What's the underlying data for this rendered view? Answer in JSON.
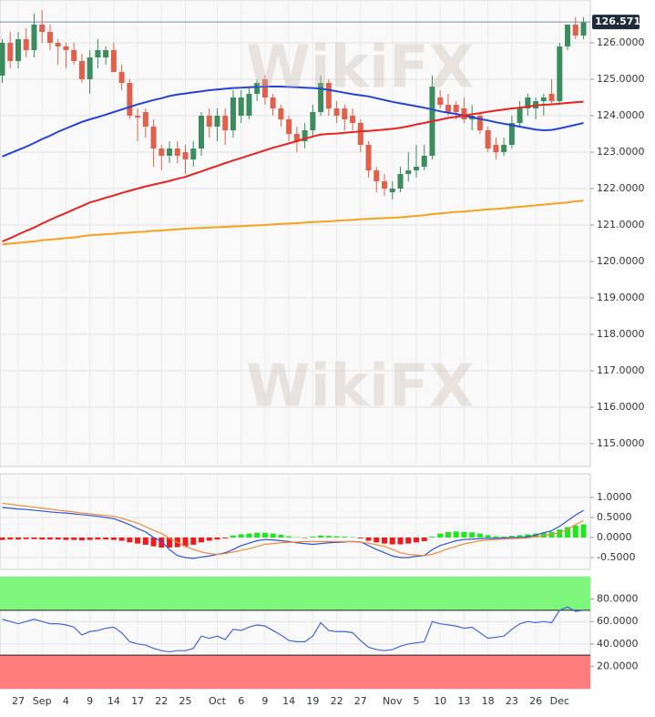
{
  "chart_data": [
    {
      "type": "candlestick",
      "watermark": "WikiFX",
      "categories": [
        null,
        null,
        "27",
        null,
        null,
        "Sep",
        null,
        null,
        "4",
        null,
        null,
        "9",
        null,
        null,
        "14",
        null,
        null,
        "17",
        null,
        null,
        "22",
        null,
        null,
        "25",
        null,
        null,
        null,
        "Oct",
        null,
        null,
        "6",
        null,
        null,
        "9",
        null,
        null,
        "14",
        null,
        null,
        "19",
        null,
        null,
        "22",
        null,
        null,
        "27",
        null,
        null,
        null,
        "Nov",
        null,
        null,
        "5",
        null,
        null,
        "10",
        null,
        null,
        "13",
        null,
        null,
        "18",
        null,
        null,
        "23",
        null,
        null,
        "26",
        null,
        null,
        "Dec",
        null,
        null,
        null
      ],
      "open": [
        125.1,
        126.0,
        125.5,
        126.1,
        125.8,
        126.5,
        126.3,
        126.0,
        125.9,
        125.8,
        125.5,
        125.0,
        125.6,
        125.6,
        125.8,
        125.2,
        124.9,
        124.0,
        124.1,
        123.7,
        123.1,
        122.9,
        123.1,
        123.0,
        122.8,
        123.1,
        124.0,
        123.7,
        124.0,
        123.6,
        124.0,
        124.0,
        124.6,
        125.0,
        124.5,
        124.2,
        123.9,
        123.5,
        123.3,
        123.6,
        124.1,
        124.9,
        124.2,
        124.2,
        124.0,
        123.8,
        123.2,
        122.5,
        122.2,
        121.9,
        122.0,
        122.4,
        122.5,
        122.6,
        122.9,
        124.5,
        124.3,
        124.3,
        124.2,
        123.9,
        124.0,
        123.6,
        123.2,
        123.0,
        123.2,
        123.8,
        124.2,
        124.2,
        124.4,
        124.6,
        124.4,
        125.9,
        126.5,
        126.2
      ],
      "high": [
        126.1,
        126.3,
        126.3,
        126.4,
        126.8,
        126.9,
        126.5,
        126.1,
        126.0,
        126.0,
        125.7,
        125.8,
        126.1,
        125.9,
        126.0,
        125.4,
        125.0,
        124.2,
        124.2,
        123.9,
        123.2,
        123.3,
        123.3,
        123.2,
        123.3,
        124.1,
        124.2,
        124.2,
        124.2,
        124.7,
        124.7,
        124.8,
        125.0,
        125.1,
        124.6,
        124.3,
        124.0,
        123.7,
        123.8,
        124.3,
        125.1,
        125.0,
        124.4,
        124.3,
        124.2,
        123.9,
        123.3,
        122.6,
        122.4,
        122.2,
        122.6,
        123.0,
        123.2,
        123.2,
        125.1,
        124.7,
        124.6,
        124.4,
        124.5,
        124.3,
        124.1,
        123.7,
        123.4,
        123.4,
        124.0,
        124.4,
        124.6,
        124.5,
        124.6,
        125.0,
        126.0,
        126.5,
        126.7,
        126.7
      ],
      "low": [
        124.9,
        125.3,
        125.3,
        125.6,
        125.6,
        126.0,
        125.8,
        125.4,
        125.3,
        125.4,
        124.9,
        124.6,
        125.3,
        125.4,
        125.3,
        124.7,
        123.9,
        123.3,
        123.4,
        122.6,
        122.5,
        122.7,
        122.7,
        122.4,
        122.6,
        122.9,
        123.4,
        123.3,
        123.2,
        123.4,
        123.8,
        123.9,
        124.4,
        124.3,
        124.0,
        123.7,
        123.3,
        123.0,
        123.1,
        123.4,
        124.0,
        124.0,
        123.8,
        123.6,
        123.6,
        123.0,
        122.3,
        121.9,
        121.8,
        121.7,
        121.9,
        122.2,
        122.3,
        122.5,
        122.8,
        124.2,
        124.0,
        123.9,
        123.8,
        123.6,
        123.5,
        123.0,
        122.8,
        122.9,
        123.1,
        123.7,
        124.0,
        123.9,
        124.0,
        124.3,
        124.3,
        125.8,
        126.1,
        126.1
      ],
      "close": [
        126.0,
        125.5,
        126.1,
        125.8,
        126.5,
        126.3,
        126.0,
        125.9,
        125.8,
        125.5,
        125.0,
        125.6,
        125.8,
        125.8,
        125.2,
        124.9,
        124.0,
        123.95,
        123.7,
        123.1,
        122.9,
        123.1,
        122.9,
        122.8,
        123.1,
        124.0,
        123.7,
        124.0,
        123.6,
        124.5,
        124.5,
        124.6,
        124.9,
        124.5,
        124.2,
        123.9,
        123.5,
        123.3,
        123.6,
        124.1,
        124.9,
        124.2,
        124.0,
        123.9,
        123.8,
        123.2,
        122.5,
        122.2,
        122.0,
        122.0,
        122.4,
        122.5,
        122.6,
        122.9,
        124.8,
        124.3,
        124.1,
        124.1,
        123.9,
        124.0,
        123.6,
        123.1,
        123.0,
        123.2,
        123.8,
        124.2,
        124.5,
        124.4,
        124.5,
        124.4,
        125.9,
        126.5,
        126.2,
        126.571
      ],
      "up_color": "#3b8c5e",
      "down_color": "#e0604c",
      "series": [
        {
          "color": "#2344d8",
          "values": [
            122.88,
            122.97,
            123.06,
            123.15,
            123.25,
            123.36,
            123.45,
            123.56,
            123.65,
            123.74,
            123.83,
            123.9,
            123.96,
            124.03,
            124.1,
            124.17,
            124.24,
            124.31,
            124.37,
            124.43,
            124.48,
            124.54,
            124.58,
            124.61,
            124.64,
            124.67,
            124.7,
            124.72,
            124.74,
            124.76,
            124.77,
            124.78,
            124.79,
            124.8,
            124.8,
            124.8,
            124.79,
            124.78,
            124.77,
            124.76,
            124.74,
            124.71,
            124.67,
            124.63,
            124.59,
            124.56,
            124.53,
            124.48,
            124.43,
            124.38,
            124.34,
            124.3,
            124.26,
            124.22,
            124.17,
            124.12,
            124.08,
            124.05,
            124.0,
            123.96,
            123.91,
            123.87,
            123.82,
            123.78,
            123.74,
            123.7,
            123.66,
            123.62,
            123.6,
            123.61,
            123.65,
            123.7,
            123.75,
            123.8
          ]
        },
        {
          "color": "#e82420",
          "values": [
            120.55,
            120.64,
            120.74,
            120.84,
            120.93,
            121.04,
            121.14,
            121.24,
            121.33,
            121.43,
            121.52,
            121.62,
            121.68,
            121.75,
            121.81,
            121.88,
            121.94,
            122.0,
            122.06,
            122.11,
            122.16,
            122.21,
            122.27,
            122.32,
            122.4,
            122.47,
            122.55,
            122.62,
            122.7,
            122.77,
            122.84,
            122.91,
            122.98,
            123.05,
            123.12,
            123.18,
            123.24,
            123.3,
            123.37,
            123.43,
            123.48,
            123.5,
            123.51,
            123.53,
            123.55,
            123.57,
            123.58,
            123.6,
            123.62,
            123.64,
            123.67,
            123.71,
            123.76,
            123.8,
            123.85,
            123.89,
            123.94,
            123.97,
            124.0,
            124.04,
            124.07,
            124.11,
            124.14,
            124.17,
            124.2,
            124.22,
            124.25,
            124.28,
            124.3,
            124.31,
            124.33,
            124.35,
            124.37,
            124.38
          ]
        },
        {
          "color": "#f5a21e",
          "values": [
            120.47,
            120.49,
            120.51,
            120.53,
            120.55,
            120.58,
            120.6,
            120.62,
            120.64,
            120.66,
            120.69,
            120.72,
            120.73,
            120.75,
            120.76,
            120.78,
            120.79,
            120.81,
            120.82,
            120.84,
            120.85,
            120.87,
            120.88,
            120.9,
            120.91,
            120.92,
            120.93,
            120.94,
            120.95,
            120.96,
            120.97,
            120.98,
            120.99,
            121.0,
            121.02,
            121.03,
            121.04,
            121.05,
            121.07,
            121.08,
            121.09,
            121.1,
            121.12,
            121.13,
            121.14,
            121.16,
            121.17,
            121.18,
            121.19,
            121.2,
            121.21,
            121.23,
            121.25,
            121.27,
            121.3,
            121.32,
            121.34,
            121.36,
            121.37,
            121.39,
            121.41,
            121.43,
            121.44,
            121.46,
            121.48,
            121.5,
            121.52,
            121.54,
            121.56,
            121.58,
            121.6,
            121.62,
            121.65,
            121.67
          ]
        }
      ],
      "last_price": {
        "value": 126.571,
        "label": "126.5710"
      },
      "ylim": [
        114.375,
        127.175
      ],
      "yticks": [
        {
          "value": 115,
          "label": "115.0000"
        },
        {
          "value": 116,
          "label": "116.0000"
        },
        {
          "value": 117,
          "label": "117.0000"
        },
        {
          "value": 118,
          "label": "118.0000"
        },
        {
          "value": 119,
          "label": "119.0000"
        },
        {
          "value": 120,
          "label": "120.0000"
        },
        {
          "value": 121,
          "label": "121.0000"
        },
        {
          "value": 122,
          "label": "122.0000"
        },
        {
          "value": 123,
          "label": "123.0000"
        },
        {
          "value": 124,
          "label": "124.0000"
        },
        {
          "value": 125,
          "label": "125.0000"
        },
        {
          "value": 126,
          "label": "126.0000"
        }
      ],
      "grid": true
    },
    {
      "type": "combo",
      "series": [
        {
          "type": "bar",
          "up_color": "#1fe61f",
          "down_color": "#ee1b1b",
          "values": [
            -0.06,
            -0.05,
            -0.05,
            -0.04,
            -0.04,
            -0.05,
            -0.05,
            -0.05,
            -0.06,
            -0.06,
            -0.07,
            -0.06,
            -0.05,
            -0.05,
            -0.06,
            -0.08,
            -0.12,
            -0.15,
            -0.18,
            -0.22,
            -0.25,
            -0.25,
            -0.24,
            -0.22,
            -0.18,
            -0.12,
            -0.08,
            -0.05,
            -0.02,
            0.05,
            0.08,
            0.1,
            0.12,
            0.12,
            0.1,
            0.07,
            0.03,
            0.01,
            -0.01,
            0.02,
            0.05,
            0.04,
            0.03,
            0.02,
            0.01,
            -0.02,
            -0.08,
            -0.12,
            -0.15,
            -0.17,
            -0.17,
            -0.15,
            -0.12,
            -0.09,
            0.02,
            0.1,
            0.14,
            0.15,
            0.14,
            0.13,
            0.1,
            0.06,
            0.03,
            0.02,
            0.04,
            0.06,
            0.08,
            0.1,
            0.12,
            0.14,
            0.2,
            0.26,
            0.3,
            0.33
          ]
        },
        {
          "type": "line",
          "color": "#3153dc",
          "values": [
            0.75,
            0.73,
            0.71,
            0.7,
            0.68,
            0.66,
            0.64,
            0.62,
            0.61,
            0.59,
            0.57,
            0.55,
            0.53,
            0.5,
            0.47,
            0.4,
            0.32,
            0.22,
            0.14,
            0.0,
            -0.1,
            -0.3,
            -0.45,
            -0.5,
            -0.52,
            -0.49,
            -0.46,
            -0.42,
            -0.38,
            -0.3,
            -0.2,
            -0.14,
            -0.08,
            -0.05,
            -0.06,
            -0.08,
            -0.1,
            -0.13,
            -0.15,
            -0.17,
            -0.15,
            -0.13,
            -0.12,
            -0.11,
            -0.1,
            -0.11,
            -0.2,
            -0.3,
            -0.38,
            -0.46,
            -0.5,
            -0.5,
            -0.47,
            -0.45,
            -0.3,
            -0.2,
            -0.14,
            -0.08,
            -0.05,
            -0.04,
            -0.03,
            -0.02,
            -0.02,
            -0.01,
            0.0,
            0.0,
            0.02,
            0.06,
            0.12,
            0.17,
            0.28,
            0.42,
            0.56,
            0.68
          ]
        },
        {
          "type": "line",
          "color": "#f08a3a",
          "values": [
            0.85,
            0.83,
            0.8,
            0.78,
            0.76,
            0.73,
            0.71,
            0.68,
            0.66,
            0.64,
            0.61,
            0.59,
            0.57,
            0.55,
            0.53,
            0.48,
            0.42,
            0.36,
            0.27,
            0.18,
            0.1,
            -0.02,
            -0.12,
            -0.22,
            -0.3,
            -0.36,
            -0.4,
            -0.42,
            -0.4,
            -0.36,
            -0.32,
            -0.28,
            -0.22,
            -0.17,
            -0.15,
            -0.13,
            -0.12,
            -0.11,
            -0.1,
            -0.1,
            -0.1,
            -0.1,
            -0.1,
            -0.1,
            -0.1,
            -0.12,
            -0.14,
            -0.18,
            -0.22,
            -0.3,
            -0.38,
            -0.42,
            -0.44,
            -0.45,
            -0.42,
            -0.35,
            -0.28,
            -0.22,
            -0.16,
            -0.12,
            -0.08,
            -0.06,
            -0.05,
            -0.04,
            -0.03,
            -0.02,
            -0.01,
            0.02,
            0.05,
            0.08,
            0.12,
            0.2,
            0.32,
            0.42
          ]
        }
      ],
      "ylim": [
        -0.795,
        1.59
      ],
      "yticks": [
        {
          "value": -0.5,
          "label": "-0.5000"
        },
        {
          "value": 0,
          "label": "0.0000"
        },
        {
          "value": 0.5,
          "label": "0.5000"
        },
        {
          "value": 1,
          "label": "1.0000"
        }
      ],
      "grid": true
    },
    {
      "type": "line",
      "zones": [
        {
          "from": 70,
          "to": 100,
          "color": "#7ff77c"
        },
        {
          "from": 0,
          "to": 30,
          "color": "#ff7d7d"
        }
      ],
      "series": [
        {
          "color": "#4466d6",
          "values": [
            62,
            60,
            58,
            60,
            62,
            60,
            58,
            58,
            57,
            55,
            48,
            51,
            52,
            54,
            55,
            50,
            42,
            40,
            39,
            36,
            34,
            33,
            34,
            34,
            36,
            47,
            45,
            47,
            44,
            53,
            52,
            55,
            57,
            56,
            52,
            48,
            43,
            42,
            42,
            47,
            59,
            52,
            51,
            51,
            50,
            43,
            37,
            35,
            34,
            35,
            38,
            40,
            41,
            42,
            60,
            58,
            57,
            56,
            54,
            55,
            50,
            45,
            46,
            47,
            53,
            58,
            60,
            59,
            60,
            59,
            70,
            73,
            69,
            70
          ]
        }
      ],
      "ylim": [
        0,
        100
      ],
      "yticks": [
        {
          "value": 20,
          "label": "20.0000"
        },
        {
          "value": 40,
          "label": "40.0000"
        },
        {
          "value": 60,
          "label": "60.0000"
        },
        {
          "value": 80,
          "label": "80.0000"
        }
      ],
      "grid": true
    }
  ]
}
